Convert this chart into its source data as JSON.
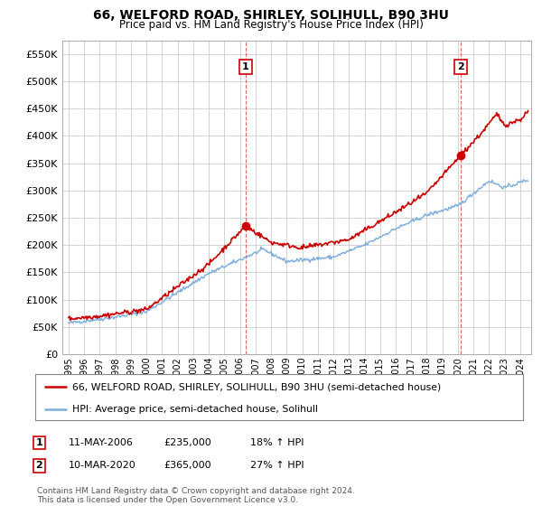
{
  "title": "66, WELFORD ROAD, SHIRLEY, SOLIHULL, B90 3HU",
  "subtitle": "Price paid vs. HM Land Registry's House Price Index (HPI)",
  "legend_line1": "66, WELFORD ROAD, SHIRLEY, SOLIHULL, B90 3HU (semi-detached house)",
  "legend_line2": "HPI: Average price, semi-detached house, Solihull",
  "footer": "Contains HM Land Registry data © Crown copyright and database right 2024.\nThis data is licensed under the Open Government Licence v3.0.",
  "annotation1_date": "11-MAY-2006",
  "annotation1_price": "£235,000",
  "annotation1_hpi": "18% ↑ HPI",
  "annotation2_date": "10-MAR-2020",
  "annotation2_price": "£365,000",
  "annotation2_hpi": "27% ↑ HPI",
  "red_color": "#cc0000",
  "blue_color": "#7aacdc",
  "background_color": "#ffffff",
  "grid_color": "#cccccc",
  "ylim": [
    0,
    575000
  ],
  "yticks": [
    0,
    50000,
    100000,
    150000,
    200000,
    250000,
    300000,
    350000,
    400000,
    450000,
    500000,
    550000
  ],
  "marker1_x": 2006.37,
  "marker1_y": 235000,
  "marker2_x": 2020.19,
  "marker2_y": 365000,
  "vline1_x": 2006.37,
  "vline2_x": 2020.19,
  "xlim_left": 1994.6,
  "xlim_right": 2024.7
}
